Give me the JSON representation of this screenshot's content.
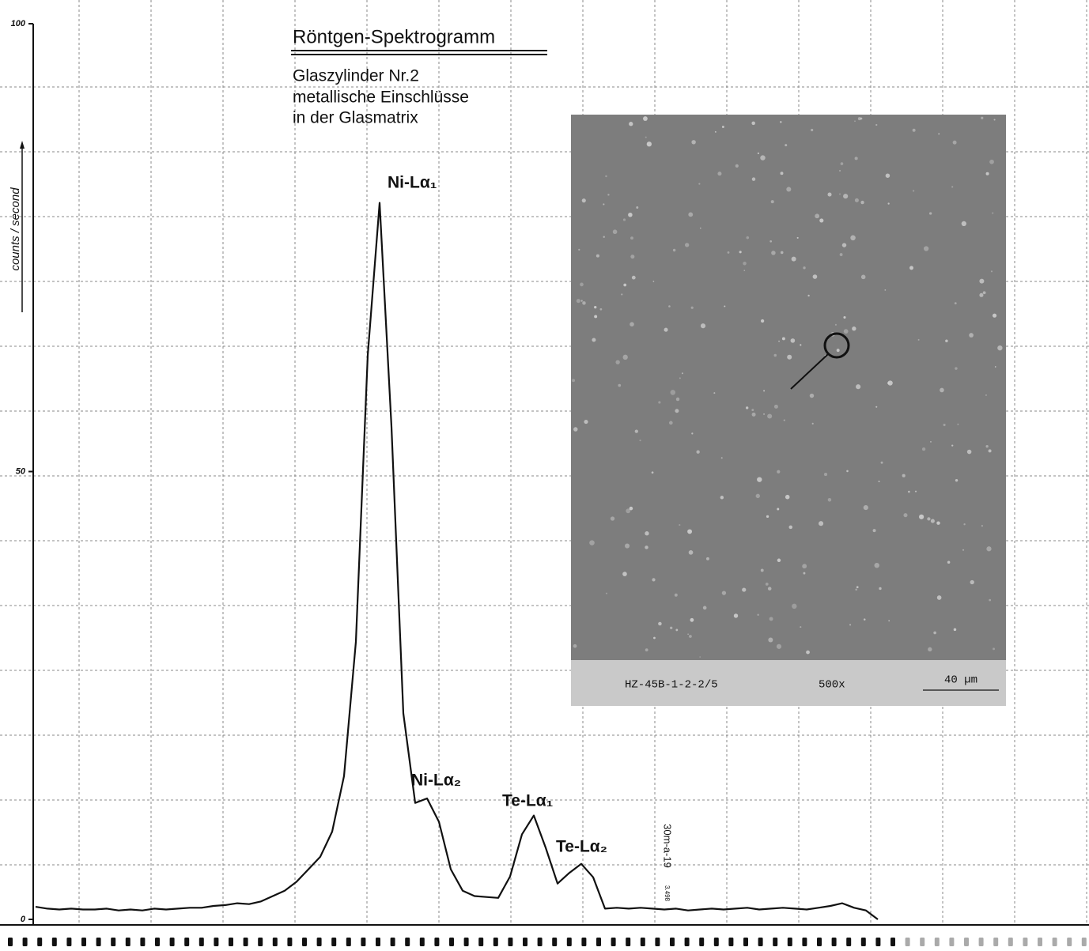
{
  "chart_data": {
    "type": "line",
    "title": "Röntgen-Spektrogramm",
    "subtitle": [
      "Glaszylinder Nr.2",
      "metallische Einschlüsse",
      "in der Glasmatrix"
    ],
    "ylabel": "counts / second",
    "ylim": [
      0,
      100
    ],
    "yticks": [
      0,
      50,
      100
    ],
    "color": "#111111",
    "values": [
      1.4,
      1.2,
      1.1,
      1.2,
      1.1,
      1.1,
      1.2,
      1.0,
      1.1,
      1.0,
      1.2,
      1.1,
      1.2,
      1.3,
      1.3,
      1.5,
      1.6,
      1.8,
      1.7,
      2.0,
      2.6,
      3.2,
      4.2,
      5.6,
      7.0,
      9.8,
      16,
      31,
      63,
      80,
      55,
      23,
      13,
      13.5,
      10.9,
      5.6,
      3.2,
      2.6,
      2.5,
      2.4,
      4.8,
      9.5,
      11.6,
      8,
      4.0,
      5.2,
      6.2,
      4.7,
      1.2,
      1.3,
      1.2,
      1.3,
      1.2,
      1.1,
      1.2,
      1.0,
      1.1,
      1.2,
      1.1,
      1.2,
      1.3,
      1.1,
      1.2,
      1.3,
      1.2,
      1.1,
      1.3,
      1.5,
      1.8,
      1.3,
      1.0,
      0
    ],
    "annotations": [
      "Ni-Lα₁",
      "Ni-Lα₂",
      "Te-Lα₁",
      "Te-Lα₂"
    ],
    "inset": {
      "caption": "HZ-45B-1-2-2/5",
      "magnification": "500x",
      "scale": "40 µm"
    },
    "stamp": [
      "30m-a-19",
      "3.498"
    ]
  }
}
